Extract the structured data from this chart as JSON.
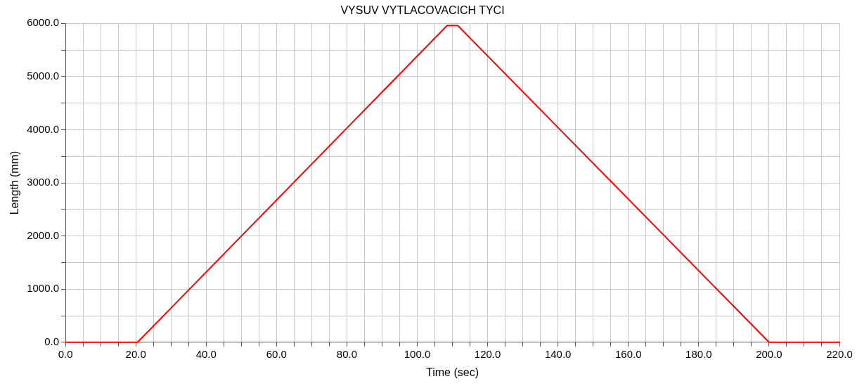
{
  "chart_data": {
    "type": "line",
    "title": "VYSUV VYTLACOVACICH TYCI",
    "xlabel": "Time (sec)",
    "ylabel": "Length (mm)",
    "x": [
      0,
      20.5,
      108.5,
      111.5,
      200,
      220
    ],
    "series": [
      {
        "color": "#ff0000",
        "values": [
          0,
          0,
          5960,
          5960,
          0,
          0
        ]
      }
    ],
    "xlim": [
      0,
      220
    ],
    "xticks": [
      {
        "value": 0,
        "label": "0.0"
      },
      {
        "value": 5,
        "label": null
      },
      {
        "value": 10,
        "label": null
      },
      {
        "value": 15,
        "label": null
      },
      {
        "value": 20,
        "label": "20.0"
      },
      {
        "value": 25,
        "label": null
      },
      {
        "value": 30,
        "label": null
      },
      {
        "value": 35,
        "label": null
      },
      {
        "value": 40,
        "label": "40.0"
      },
      {
        "value": 45,
        "label": null
      },
      {
        "value": 50,
        "label": null
      },
      {
        "value": 55,
        "label": null
      },
      {
        "value": 60,
        "label": "60.0"
      },
      {
        "value": 65,
        "label": null
      },
      {
        "value": 70,
        "label": null
      },
      {
        "value": 75,
        "label": null
      },
      {
        "value": 80,
        "label": "80.0"
      },
      {
        "value": 85,
        "label": null
      },
      {
        "value": 90,
        "label": null
      },
      {
        "value": 95,
        "label": null
      },
      {
        "value": 100,
        "label": "100.0"
      },
      {
        "value": 105,
        "label": null
      },
      {
        "value": 110,
        "label": null
      },
      {
        "value": 115,
        "label": null
      },
      {
        "value": 120,
        "label": "120.0"
      },
      {
        "value": 125,
        "label": null
      },
      {
        "value": 130,
        "label": null
      },
      {
        "value": 135,
        "label": null
      },
      {
        "value": 140,
        "label": "140.0"
      },
      {
        "value": 145,
        "label": null
      },
      {
        "value": 150,
        "label": null
      },
      {
        "value": 155,
        "label": null
      },
      {
        "value": 160,
        "label": "160.0"
      },
      {
        "value": 165,
        "label": null
      },
      {
        "value": 170,
        "label": null
      },
      {
        "value": 175,
        "label": null
      },
      {
        "value": 180,
        "label": "180.0"
      },
      {
        "value": 185,
        "label": null
      },
      {
        "value": 190,
        "label": null
      },
      {
        "value": 195,
        "label": null
      },
      {
        "value": 200,
        "label": "200.0"
      },
      {
        "value": 205,
        "label": null
      },
      {
        "value": 210,
        "label": null
      },
      {
        "value": 215,
        "label": null
      },
      {
        "value": 220,
        "label": "220.0"
      }
    ],
    "ylim": [
      0,
      6000
    ],
    "yticks": [
      {
        "value": 0,
        "label": "0.0"
      },
      {
        "value": 500,
        "label": null
      },
      {
        "value": 1000,
        "label": "1000.0"
      },
      {
        "value": 1500,
        "label": null
      },
      {
        "value": 2000,
        "label": "2000.0"
      },
      {
        "value": 2500,
        "label": null
      },
      {
        "value": 3000,
        "label": "3000.0"
      },
      {
        "value": 3500,
        "label": null
      },
      {
        "value": 4000,
        "label": "4000.0"
      },
      {
        "value": 4500,
        "label": null
      },
      {
        "value": 5000,
        "label": "5000.0"
      },
      {
        "value": 5500,
        "label": null
      },
      {
        "value": 6000,
        "label": "6000.0"
      }
    ],
    "grid": true,
    "marker": "none",
    "line_style": "solid"
  }
}
